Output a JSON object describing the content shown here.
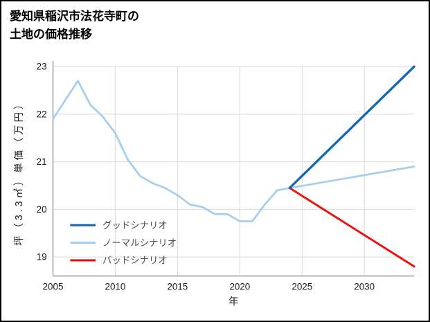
{
  "header": {
    "title_line1": "愛知県稲沢市法花寺町の",
    "title_line2": "土地の価格推移"
  },
  "chart_data": {
    "type": "line",
    "title": "愛知県稲沢市法花寺町の土地の価格推移",
    "xlabel": "年",
    "ylabel": "坪（3.3㎡）単価（万円）",
    "xlim": [
      2005,
      2034
    ],
    "ylim": [
      18.6,
      23
    ],
    "xticks": [
      2005,
      2010,
      2015,
      2020,
      2025,
      2030
    ],
    "yticks": [
      19,
      20,
      21,
      22,
      23
    ],
    "grid": true,
    "legend_position": "inside-bottom-left",
    "style": {
      "background": "#ffffff",
      "border_color": "#000000",
      "grid_color": "#d9d9d9",
      "axis_color": "#8c8c8c",
      "tick_label_color": "#1a1a1a",
      "legend_text_color": "#4d4d4d"
    },
    "series": [
      {
        "id": "good",
        "name": "グッドシナリオ",
        "color": "#1467b4",
        "width": 3.4,
        "draw_order": 3,
        "x": [
          2024,
          2034
        ],
        "y": [
          20.45,
          23.0
        ]
      },
      {
        "id": "normal",
        "name": "ノーマルシナリオ",
        "color": "#a6cfee",
        "width": 2.8,
        "draw_order": 1,
        "x": [
          2005,
          2006,
          2007,
          2008,
          2009,
          2010,
          2011,
          2012,
          2013,
          2014,
          2015,
          2016,
          2017,
          2018,
          2019,
          2020,
          2021,
          2022,
          2023,
          2024,
          2034
        ],
        "y": [
          21.9,
          22.3,
          22.7,
          22.2,
          21.95,
          21.6,
          21.05,
          20.7,
          20.55,
          20.45,
          20.3,
          20.1,
          20.05,
          19.9,
          19.9,
          19.75,
          19.75,
          20.1,
          20.4,
          20.45,
          20.9
        ]
      },
      {
        "id": "bad",
        "name": "バッドシナリオ",
        "color": "#ee1111",
        "width": 3.0,
        "draw_order": 2,
        "x": [
          2024,
          2034
        ],
        "y": [
          20.45,
          18.8
        ]
      }
    ]
  }
}
